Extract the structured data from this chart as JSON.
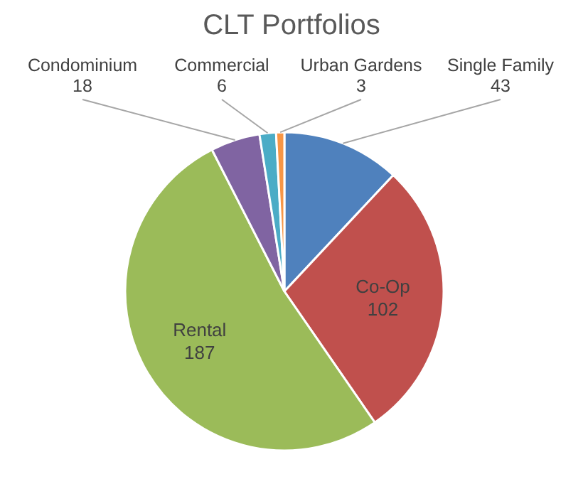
{
  "chart_data": {
    "type": "pie",
    "title": "CLT Portfolios",
    "categories": [
      "Single Family",
      "Co-Op",
      "Rental",
      "Condominium",
      "Commercial",
      "Urban Gardens"
    ],
    "values": [
      43,
      102,
      187,
      18,
      6,
      3
    ],
    "colors": [
      "#4f81bd",
      "#c0504d",
      "#9bbb59",
      "#8064a2",
      "#4bacc6",
      "#f79646"
    ],
    "data_labels": true
  }
}
